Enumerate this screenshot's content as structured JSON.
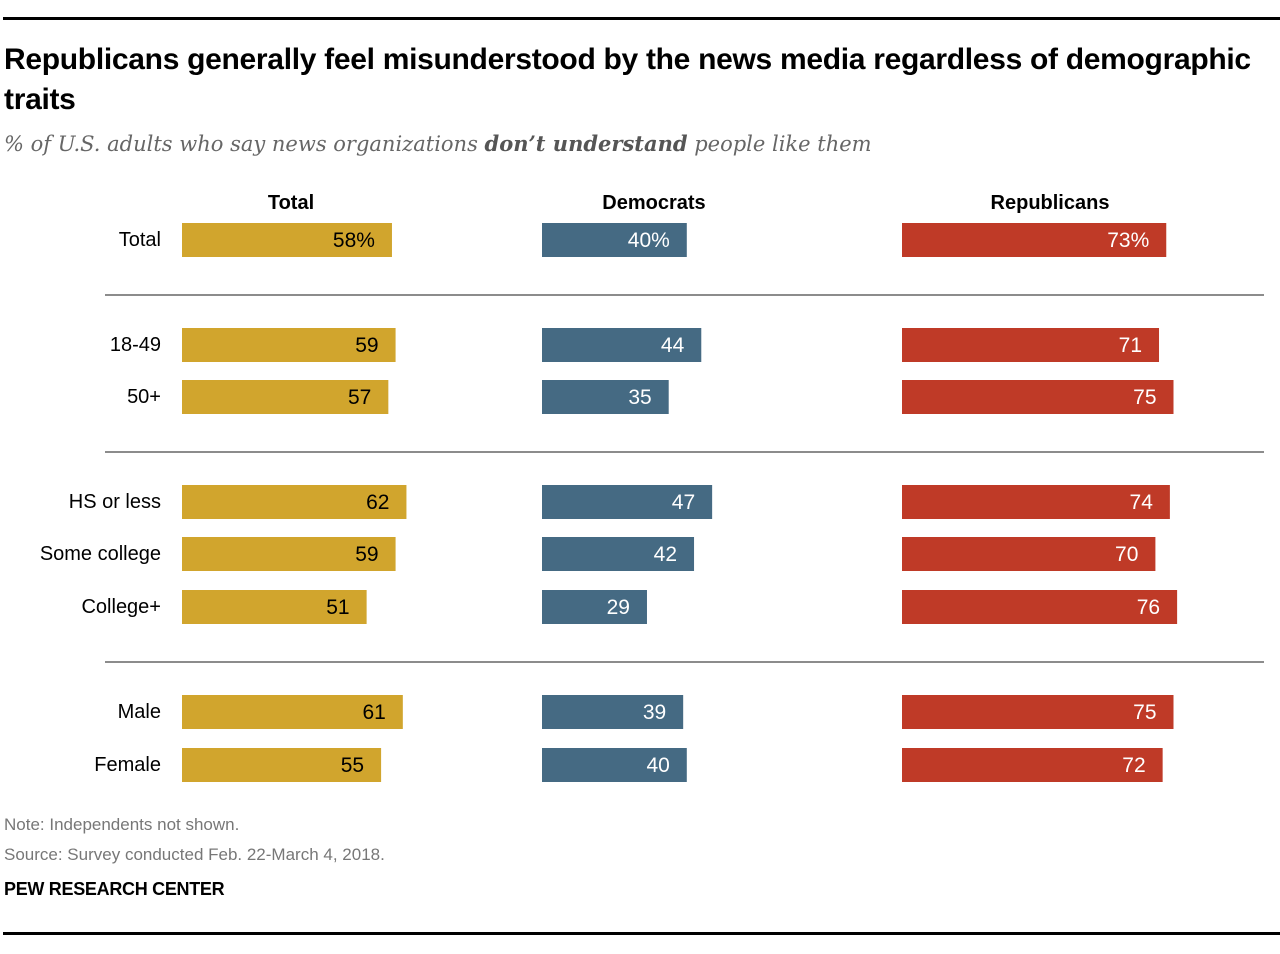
{
  "title": "Republicans generally feel misunderstood by the news media regardless of demographic traits",
  "subtitle": {
    "prefix": "% of U.S. adults who say news organizations ",
    "emphasis": "don’t understand",
    "suffix": " people like them"
  },
  "footer": {
    "note": "Note: Independents not shown.",
    "source": "Source: Survey conducted Feb. 22-March 4, 2018.",
    "brand": "PEW RESEARCH CENTER"
  },
  "colors": {
    "total": "#D1A52D",
    "democrats": "#456A83",
    "republicans": "#BF3A27",
    "divider": "#8C8C8C"
  },
  "chart_data": {
    "type": "bar",
    "orientation": "horizontal",
    "title": "Republicans generally feel misunderstood by the news media regardless of demographic traits",
    "subtitle": "% of U.S. adults who say news organizations don’t understand people like them",
    "unit": "%",
    "categories": [
      "Total",
      "18-49",
      "50+",
      "HS or less",
      "Some college",
      "College+",
      "Male",
      "Female"
    ],
    "groups": [
      [
        "Total"
      ],
      [
        "18-49",
        "50+"
      ],
      [
        "HS or less",
        "Some college",
        "College+"
      ],
      [
        "Male",
        "Female"
      ]
    ],
    "series": [
      {
        "name": "Total",
        "color": "#D1A52D",
        "label_color": "#000000",
        "values": [
          58,
          59,
          57,
          62,
          59,
          51,
          61,
          55
        ]
      },
      {
        "name": "Democrats",
        "color": "#456A83",
        "label_color": "#FFFFFF",
        "values": [
          40,
          44,
          35,
          47,
          42,
          29,
          39,
          40
        ]
      },
      {
        "name": "Republicans",
        "color": "#BF3A27",
        "label_color": "#FFFFFF",
        "values": [
          73,
          71,
          75,
          74,
          70,
          76,
          75,
          72
        ]
      }
    ],
    "xlim": [
      0,
      100
    ],
    "grid": false,
    "legend": "column headers (top)"
  }
}
